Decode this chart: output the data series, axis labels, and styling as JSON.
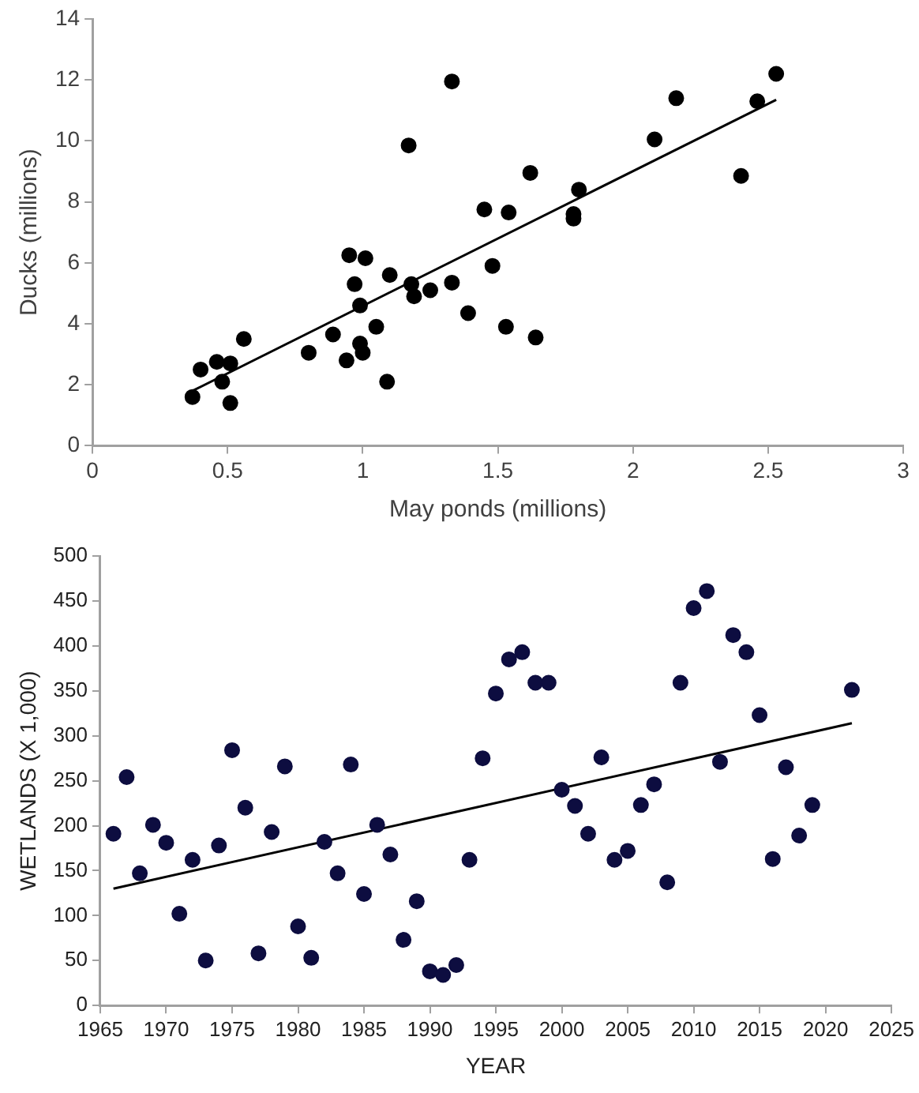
{
  "chart_data": [
    {
      "type": "scatter",
      "xlabel": "May ponds (millions)",
      "ylabel": "Ducks (millions)",
      "xlim": [
        0,
        3
      ],
      "xticks": [
        0,
        0.5,
        1,
        1.5,
        2,
        2.5,
        3
      ],
      "ylim": [
        0,
        14
      ],
      "yticks": [
        0,
        2,
        4,
        6,
        8,
        10,
        12,
        14
      ],
      "grid": false,
      "series": [
        {
          "marker": "circle",
          "color": "#000000",
          "x": [
            0.37,
            0.4,
            0.46,
            0.48,
            0.51,
            0.51,
            0.56,
            0.8,
            0.89,
            0.94,
            0.95,
            0.97,
            0.99,
            0.99,
            1.0,
            1.01,
            1.05,
            1.09,
            1.1,
            1.17,
            1.18,
            1.19,
            1.25,
            1.33,
            1.33,
            1.39,
            1.45,
            1.48,
            1.53,
            1.54,
            1.62,
            1.64,
            1.78,
            1.78,
            1.8,
            2.08,
            2.16,
            2.4,
            2.46,
            2.53
          ],
          "values": [
            1.6,
            2.5,
            2.75,
            2.1,
            2.7,
            1.4,
            3.5,
            3.05,
            3.65,
            2.8,
            6.25,
            5.3,
            4.6,
            3.35,
            3.05,
            6.15,
            3.9,
            2.1,
            5.6,
            9.85,
            5.3,
            4.9,
            5.1,
            5.35,
            11.95,
            4.35,
            7.75,
            5.9,
            3.9,
            7.65,
            8.95,
            3.55,
            7.6,
            7.45,
            8.4,
            10.05,
            11.4,
            8.85,
            11.3,
            12.2
          ]
        },
        {
          "type": "line",
          "marker": "none",
          "color": "#000000",
          "x": [
            0.37,
            2.53
          ],
          "values": [
            1.8,
            11.35
          ]
        }
      ]
    },
    {
      "type": "scatter",
      "xlabel": "YEAR",
      "ylabel": "WETLANDS (X 1,000)",
      "xlim": [
        1965,
        2025
      ],
      "xticks": [
        1965,
        1970,
        1975,
        1980,
        1985,
        1990,
        1995,
        2000,
        2005,
        2010,
        2015,
        2020,
        2025
      ],
      "ylim": [
        0,
        500
      ],
      "yticks": [
        0,
        50,
        100,
        150,
        200,
        250,
        300,
        350,
        400,
        450,
        500
      ],
      "grid": false,
      "series": [
        {
          "marker": "circle",
          "color": "#0d0d40",
          "x": [
            1966,
            1967,
            1968,
            1969,
            1970,
            1971,
            1972,
            1973,
            1974,
            1975,
            1976,
            1977,
            1978,
            1979,
            1980,
            1981,
            1982,
            1983,
            1984,
            1985,
            1986,
            1987,
            1988,
            1989,
            1990,
            1991,
            1992,
            1993,
            1994,
            1995,
            1996,
            1997,
            1998,
            1999,
            2000,
            2001,
            2002,
            2003,
            2004,
            2005,
            2006,
            2007,
            2008,
            2009,
            2010,
            2011,
            2012,
            2013,
            2014,
            2015,
            2016,
            2017,
            2018,
            2019,
            2022
          ],
          "values": [
            191,
            254,
            147,
            201,
            181,
            102,
            162,
            50,
            178,
            284,
            220,
            58,
            193,
            266,
            88,
            53,
            182,
            147,
            268,
            124,
            201,
            168,
            73,
            116,
            38,
            34,
            45,
            162,
            275,
            347,
            385,
            393,
            359,
            359,
            240,
            222,
            191,
            276,
            162,
            172,
            223,
            246,
            137,
            359,
            442,
            461,
            271,
            412,
            393,
            323,
            163,
            265,
            189,
            223,
            351
          ]
        },
        {
          "type": "line",
          "marker": "none",
          "color": "#000000",
          "x": [
            1966,
            2022
          ],
          "values": [
            130,
            314
          ]
        }
      ]
    }
  ]
}
